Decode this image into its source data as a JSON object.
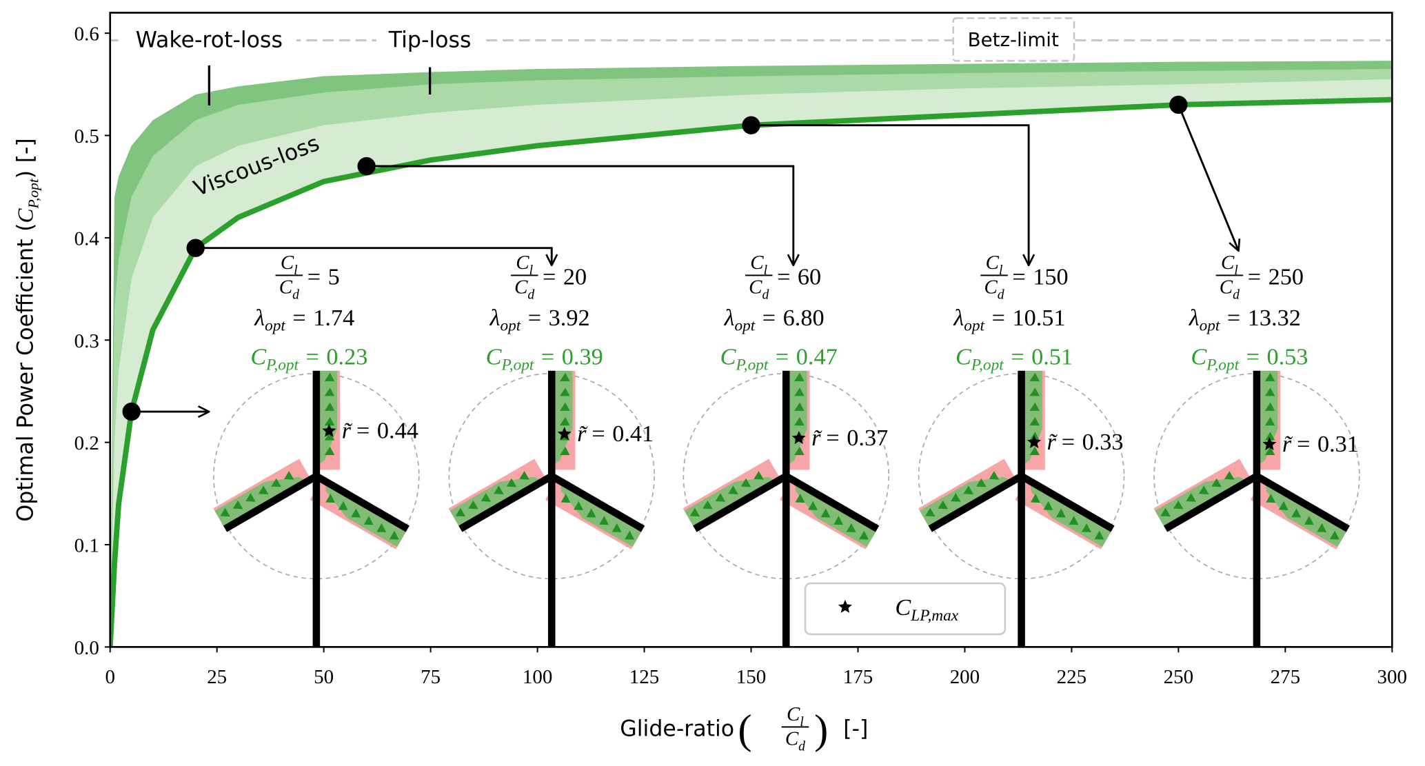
{
  "chart_data": {
    "type": "line",
    "xlabel": {
      "text": "Glide-ratio",
      "open": "(",
      "close": ")",
      "unit": "[-]"
    },
    "ylabel": {
      "text": "Optimal Power Coefficient",
      "open": "(",
      "close": ")",
      "unit": "[-]"
    },
    "ratio_symbol": {
      "num": "C",
      "num_sub": "l",
      "den": "C",
      "den_sub": "d"
    },
    "equals": "=",
    "lambda_symbol": "λ",
    "lambda_sub": "opt",
    "cp_symbol": "C",
    "cp_sub": "P,opt",
    "r_symbol": "r̃",
    "x": [
      0,
      1,
      2,
      5,
      10,
      20,
      30,
      50,
      75,
      100,
      150,
      200,
      250,
      300
    ],
    "series": [
      {
        "name": "Wake-rot-loss",
        "color": "#80c480",
        "values": [
          0,
          0.44,
          0.46,
          0.49,
          0.515,
          0.54,
          0.548,
          0.558,
          0.562,
          0.565,
          0.568,
          0.57,
          0.572,
          0.573
        ]
      },
      {
        "name": "Tip-loss",
        "color": "#abd9a7",
        "values": [
          0,
          0.33,
          0.38,
          0.44,
          0.48,
          0.515,
          0.53,
          0.542,
          0.55,
          0.554,
          0.558,
          0.561,
          0.563,
          0.565
        ]
      },
      {
        "name": "Viscous-loss",
        "color": "#d5ecd2",
        "values": [
          0,
          0.2,
          0.27,
          0.36,
          0.42,
          0.47,
          0.49,
          0.51,
          0.522,
          0.53,
          0.54,
          0.546,
          0.55,
          0.555
        ]
      },
      {
        "color": "#2ca02c",
        "values": [
          0,
          0.08,
          0.14,
          0.23,
          0.31,
          0.39,
          0.42,
          0.455,
          0.476,
          0.49,
          0.51,
          0.52,
          0.53,
          0.535
        ]
      }
    ],
    "betz": {
      "label": "Betz-limit",
      "value": 0.593,
      "color": "#c8c8c8"
    },
    "rotors": {
      "glide_ratios": [
        5,
        20,
        60,
        150,
        250
      ],
      "lambda_opt": [
        1.74,
        3.92,
        6.8,
        10.51,
        13.32
      ],
      "lambda_labels": [
        "1.74",
        "3.92",
        "6.80",
        "10.51",
        "13.32"
      ],
      "cp_opt": [
        0.23,
        0.39,
        0.47,
        0.51,
        0.53
      ],
      "r_tilde": [
        0.44,
        0.41,
        0.37,
        0.33,
        0.31
      ]
    },
    "legend": {
      "symbol": "C",
      "sub": "LP,max"
    },
    "xlim": [
      0,
      300
    ],
    "ylim": [
      0,
      0.62
    ],
    "xticks": [
      0,
      25,
      50,
      75,
      100,
      125,
      150,
      175,
      200,
      225,
      250,
      275,
      300
    ],
    "yticks": [
      {
        "value": 0,
        "label": "0.0"
      },
      0.1,
      0.2,
      0.3,
      0.4,
      0.5,
      0.6
    ]
  }
}
